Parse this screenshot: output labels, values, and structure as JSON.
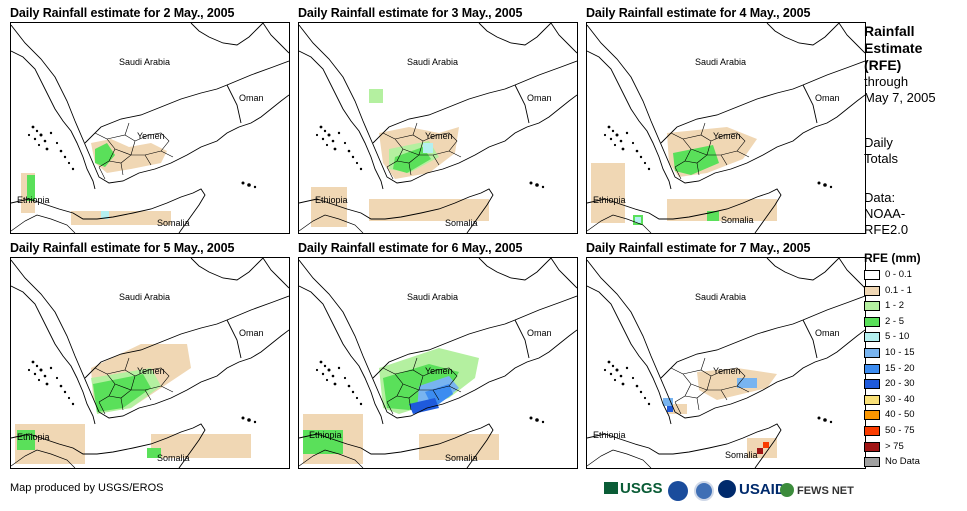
{
  "panels": [
    {
      "title": "Daily Rainfall estimate for 2 May., 2005"
    },
    {
      "title": "Daily Rainfall estimate for 3 May., 2005"
    },
    {
      "title": "Daily Rainfall estimate for 4 May., 2005"
    },
    {
      "title": "Daily Rainfall estimate for 5 May., 2005"
    },
    {
      "title": "Daily Rainfall estimate for 6 May., 2005"
    },
    {
      "title": "Daily Rainfall estimate for 7 May., 2005"
    }
  ],
  "map_labels": {
    "saudi": "Saudi Arabia",
    "oman": "Oman",
    "yemen": "Yemen",
    "ethiopia": "Ethiopia",
    "somalia": "Somalia"
  },
  "side": {
    "title_1": "Rainfall",
    "title_2": "Estimate",
    "title_3": "(RFE)",
    "through_1": "through",
    "through_2": "May 7, 2005",
    "daily_1": "Daily",
    "daily_2": "Totals",
    "data_1": "Data:",
    "data_2": "NOAA-",
    "data_3": "RFE2.0"
  },
  "legend": {
    "title": "RFE (mm)",
    "items": [
      {
        "label": "0 - 0.1",
        "color": "#ffffff"
      },
      {
        "label": "0.1 - 1",
        "color": "#f0d7b4"
      },
      {
        "label": "1 - 2",
        "color": "#b4f0a0"
      },
      {
        "label": "2 - 5",
        "color": "#5ae05a"
      },
      {
        "label": "5 - 10",
        "color": "#b4f0f0"
      },
      {
        "label": "10 - 15",
        "color": "#78b4f0"
      },
      {
        "label": "15 - 20",
        "color": "#3c8cf0"
      },
      {
        "label": "20 - 30",
        "color": "#1e5adc"
      },
      {
        "label": "30 - 40",
        "color": "#fae178"
      },
      {
        "label": "40 - 50",
        "color": "#fa9600"
      },
      {
        "label": "50 - 75",
        "color": "#fa3c00"
      },
      {
        "label": "> 75",
        "color": "#a01414"
      },
      {
        "label": "No Data",
        "color": "#a0a0a0"
      }
    ]
  },
  "credit": "Map produced by USGS/EROS",
  "logos": {
    "usgs": "USGS",
    "usaid": "USAID",
    "fews": "FEWS NET"
  }
}
